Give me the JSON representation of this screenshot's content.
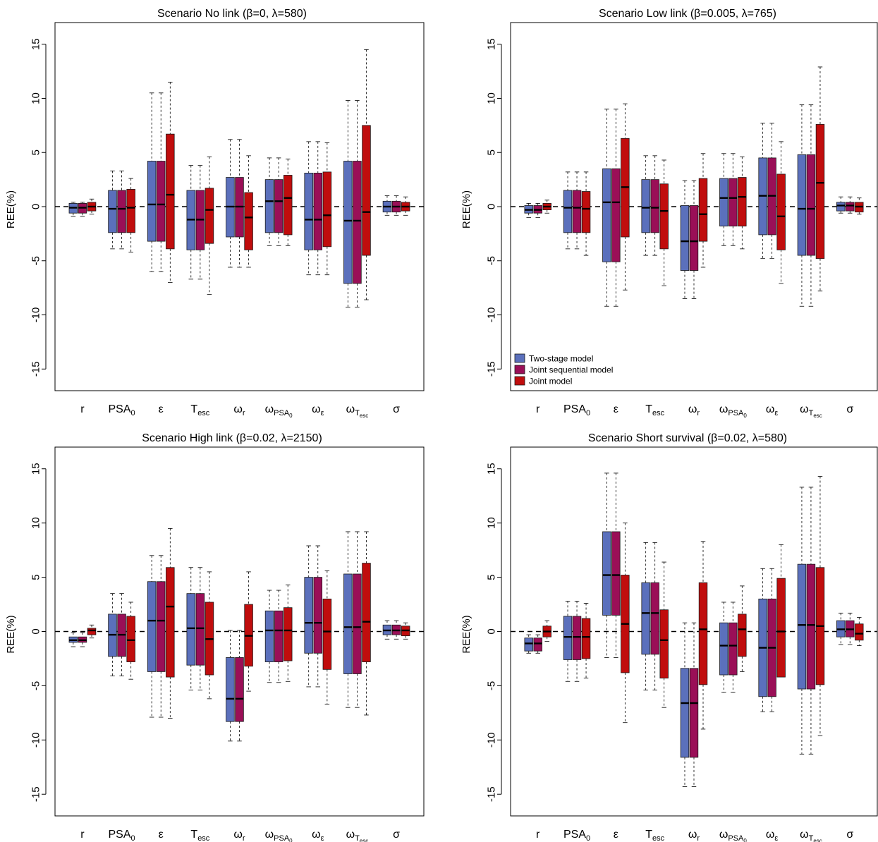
{
  "colors": {
    "two_stage": "#5b70bc",
    "joint_sequential": "#9a0f57",
    "joint": "#c00d0d",
    "box_border": "#1a1a1a",
    "background": "#ffffff"
  },
  "legend": {
    "panel_index": 1,
    "entries": [
      "Two-stage model",
      "Joint sequential model",
      "Joint model"
    ]
  },
  "chart_data": [
    {
      "type": "box",
      "title": "Scenario No link (β=0, λ=580)",
      "ylabel": "REE(%)",
      "ylim": [
        -17,
        17
      ],
      "yticks": [
        -15,
        -10,
        -5,
        0,
        5,
        10,
        15
      ],
      "categories": [
        "r",
        "PSA0",
        "ε",
        "Tesc",
        "ωr",
        "ωPSA0",
        "ωε",
        "ωTesc",
        "σ"
      ],
      "category_labels": [
        {
          "base": "r"
        },
        {
          "base": "PSA",
          "sub": "0"
        },
        {
          "base": "ε"
        },
        {
          "base": "T",
          "sub": "esc"
        },
        {
          "base": "ω",
          "sub": "r"
        },
        {
          "base": "ω",
          "sub": "PSA",
          "subsub": "0"
        },
        {
          "base": "ω",
          "sub": "ε"
        },
        {
          "base": "ω",
          "sub": "T",
          "subsub": "esc"
        },
        {
          "base": "σ"
        }
      ],
      "series": [
        {
          "name": "Two-stage model",
          "boxes": [
            [
              -0.9,
              -0.6,
              -0.1,
              0.3,
              0.4
            ],
            [
              -3.9,
              -2.4,
              -0.2,
              1.5,
              3.3
            ],
            [
              -6.0,
              -3.2,
              0.2,
              4.2,
              10.5
            ],
            [
              -6.7,
              -4.0,
              -1.2,
              1.5,
              3.8
            ],
            [
              -5.6,
              -2.8,
              0.0,
              2.7,
              6.2
            ],
            [
              -3.6,
              -2.4,
              0.5,
              2.5,
              4.5
            ],
            [
              -6.3,
              -4.0,
              -1.2,
              3.1,
              6.0
            ],
            [
              -9.3,
              -7.1,
              -1.3,
              4.2,
              9.8
            ],
            [
              -0.8,
              -0.5,
              0.0,
              0.5,
              1.0
            ]
          ]
        },
        {
          "name": "Joint sequential model",
          "boxes": [
            [
              -0.9,
              -0.6,
              -0.1,
              0.3,
              0.4
            ],
            [
              -3.9,
              -2.4,
              -0.2,
              1.5,
              3.3
            ],
            [
              -6.0,
              -3.2,
              0.2,
              4.2,
              10.5
            ],
            [
              -6.7,
              -4.0,
              -1.2,
              1.5,
              3.8
            ],
            [
              -5.6,
              -2.8,
              0.0,
              2.7,
              6.2
            ],
            [
              -3.6,
              -2.4,
              0.5,
              2.5,
              4.5
            ],
            [
              -6.3,
              -4.0,
              -1.2,
              3.1,
              6.0
            ],
            [
              -9.3,
              -7.1,
              -1.3,
              4.2,
              9.8
            ],
            [
              -0.8,
              -0.5,
              0.0,
              0.5,
              1.0
            ]
          ]
        },
        {
          "name": "Joint model",
          "boxes": [
            [
              -0.7,
              -0.4,
              0.0,
              0.4,
              0.7
            ],
            [
              -4.2,
              -2.4,
              -0.1,
              1.6,
              2.6
            ],
            [
              -7.0,
              -3.9,
              1.1,
              6.7,
              11.5
            ],
            [
              -8.1,
              -3.4,
              -0.3,
              1.7,
              4.6
            ],
            [
              -5.6,
              -4.0,
              -1.0,
              1.3,
              4.7
            ],
            [
              -3.6,
              -2.6,
              0.8,
              2.9,
              4.4
            ],
            [
              -6.3,
              -3.7,
              -0.8,
              3.2,
              5.9
            ],
            [
              -8.6,
              -4.5,
              -0.5,
              7.5,
              14.5
            ],
            [
              -0.8,
              -0.4,
              0.0,
              0.4,
              0.9
            ]
          ]
        }
      ]
    },
    {
      "type": "box",
      "title": "Scenario Low link (β=0.005, λ=765)",
      "ylabel": "REE(%)",
      "ylim": [
        -17,
        17
      ],
      "yticks": [
        -15,
        -10,
        -5,
        0,
        5,
        10,
        15
      ],
      "categories": [
        "r",
        "PSA0",
        "ε",
        "Tesc",
        "ωr",
        "ωPSA0",
        "ωε",
        "ωTesc",
        "σ"
      ],
      "category_labels": [
        {
          "base": "r"
        },
        {
          "base": "PSA",
          "sub": "0"
        },
        {
          "base": "ε"
        },
        {
          "base": "T",
          "sub": "esc"
        },
        {
          "base": "ω",
          "sub": "r"
        },
        {
          "base": "ω",
          "sub": "PSA",
          "subsub": "0"
        },
        {
          "base": "ω",
          "sub": "ε"
        },
        {
          "base": "ω",
          "sub": "T",
          "subsub": "esc"
        },
        {
          "base": "σ"
        }
      ],
      "series": [
        {
          "name": "Two-stage model",
          "boxes": [
            [
              -1.0,
              -0.6,
              -0.3,
              0.1,
              0.3
            ],
            [
              -3.9,
              -2.4,
              -0.1,
              1.5,
              3.2
            ],
            [
              -9.2,
              -5.1,
              0.4,
              3.5,
              9.0
            ],
            [
              -4.5,
              -2.4,
              -0.1,
              2.5,
              4.7
            ],
            [
              -8.5,
              -5.9,
              -3.2,
              0.1,
              2.4
            ],
            [
              -3.6,
              -1.8,
              0.8,
              2.6,
              4.9
            ],
            [
              -4.8,
              -2.6,
              1.0,
              4.5,
              7.7
            ],
            [
              -9.2,
              -4.5,
              -0.2,
              4.8,
              9.4
            ],
            [
              -0.6,
              -0.4,
              0.1,
              0.4,
              0.9
            ]
          ]
        },
        {
          "name": "Joint sequential model",
          "boxes": [
            [
              -1.0,
              -0.6,
              -0.3,
              0.1,
              0.3
            ],
            [
              -3.9,
              -2.4,
              -0.1,
              1.5,
              3.2
            ],
            [
              -9.2,
              -5.1,
              0.4,
              3.5,
              9.0
            ],
            [
              -4.5,
              -2.4,
              -0.1,
              2.5,
              4.7
            ],
            [
              -8.5,
              -5.9,
              -3.2,
              0.1,
              2.4
            ],
            [
              -3.6,
              -1.8,
              0.8,
              2.6,
              4.9
            ],
            [
              -4.8,
              -2.6,
              1.0,
              4.5,
              7.7
            ],
            [
              -9.2,
              -4.5,
              -0.2,
              4.8,
              9.4
            ],
            [
              -0.6,
              -0.4,
              0.1,
              0.4,
              0.9
            ]
          ]
        },
        {
          "name": "Joint model",
          "boxes": [
            [
              -0.6,
              -0.3,
              0.0,
              0.3,
              0.6
            ],
            [
              -4.5,
              -2.4,
              -0.2,
              1.4,
              3.2
            ],
            [
              -7.7,
              -2.8,
              1.8,
              6.3,
              9.5
            ],
            [
              -7.3,
              -3.9,
              -0.4,
              2.1,
              4.3
            ],
            [
              -5.6,
              -3.2,
              -0.7,
              2.6,
              4.9
            ],
            [
              -3.9,
              -1.8,
              0.9,
              2.7,
              4.6
            ],
            [
              -7.1,
              -4.0,
              -0.9,
              3.0,
              6.0
            ],
            [
              -7.8,
              -4.8,
              2.2,
              7.6,
              12.9
            ],
            [
              -0.7,
              -0.5,
              0.0,
              0.4,
              0.8
            ]
          ]
        }
      ]
    },
    {
      "type": "box",
      "title": "Scenario High link (β=0.02, λ=2150)",
      "ylabel": "REE(%)",
      "ylim": [
        -17,
        17
      ],
      "yticks": [
        -15,
        -10,
        -5,
        0,
        5,
        10,
        15
      ],
      "categories": [
        "r",
        "PSA0",
        "ε",
        "Tesc",
        "ωr",
        "ωPSA0",
        "ωε",
        "ωTesc",
        "σ"
      ],
      "category_labels": [
        {
          "base": "r"
        },
        {
          "base": "PSA",
          "sub": "0"
        },
        {
          "base": "ε"
        },
        {
          "base": "T",
          "sub": "esc"
        },
        {
          "base": "ω",
          "sub": "r"
        },
        {
          "base": "ω",
          "sub": "PSA",
          "subsub": "0"
        },
        {
          "base": "ω",
          "sub": "ε"
        },
        {
          "base": "ω",
          "sub": "T",
          "subsub": "esc"
        },
        {
          "base": "σ"
        }
      ],
      "series": [
        {
          "name": "Two-stage model",
          "boxes": [
            [
              -1.4,
              -1.0,
              -0.8,
              -0.5,
              -0.1
            ],
            [
              -4.1,
              -2.3,
              -0.3,
              1.6,
              3.5
            ],
            [
              -7.9,
              -3.7,
              1.0,
              4.6,
              7.0
            ],
            [
              -5.4,
              -3.1,
              0.3,
              3.5,
              5.9
            ],
            [
              -10.1,
              -8.3,
              -6.2,
              -2.4,
              0.1
            ],
            [
              -4.7,
              -2.8,
              0.1,
              1.9,
              3.8
            ],
            [
              -5.1,
              -2.0,
              0.8,
              5.0,
              7.9
            ],
            [
              -7.0,
              -3.9,
              0.4,
              5.3,
              9.2
            ],
            [
              -0.7,
              -0.3,
              0.1,
              0.6,
              1.0
            ]
          ]
        },
        {
          "name": "Joint sequential model",
          "boxes": [
            [
              -1.4,
              -1.0,
              -0.8,
              -0.5,
              -0.1
            ],
            [
              -4.1,
              -2.3,
              -0.3,
              1.6,
              3.5
            ],
            [
              -7.9,
              -3.7,
              1.0,
              4.6,
              7.0
            ],
            [
              -5.4,
              -3.1,
              0.3,
              3.5,
              5.9
            ],
            [
              -10.1,
              -8.3,
              -6.2,
              -2.4,
              0.1
            ],
            [
              -4.7,
              -2.8,
              0.1,
              1.9,
              3.8
            ],
            [
              -5.1,
              -2.0,
              0.8,
              5.0,
              7.9
            ],
            [
              -7.0,
              -3.9,
              0.4,
              5.3,
              9.2
            ],
            [
              -0.7,
              -0.3,
              0.1,
              0.6,
              1.0
            ]
          ]
        },
        {
          "name": "Joint model",
          "boxes": [
            [
              -0.6,
              -0.3,
              0.1,
              0.3,
              0.6
            ],
            [
              -4.4,
              -2.8,
              -0.8,
              1.4,
              2.7
            ],
            [
              -8.0,
              -4.2,
              2.3,
              5.9,
              9.5
            ],
            [
              -6.2,
              -4.0,
              -0.7,
              2.7,
              5.5
            ],
            [
              -5.5,
              -3.2,
              -0.4,
              2.5,
              5.5
            ],
            [
              -4.6,
              -2.7,
              0.1,
              2.2,
              4.3
            ],
            [
              -6.7,
              -3.5,
              0.0,
              3.0,
              5.6
            ],
            [
              -7.7,
              -2.8,
              0.9,
              6.3,
              9.2
            ],
            [
              -0.7,
              -0.4,
              0.1,
              0.5,
              0.8
            ]
          ]
        }
      ]
    },
    {
      "type": "box",
      "title": "Scenario Short survival (β=0.02, λ=580)",
      "ylabel": "REE(%)",
      "ylim": [
        -17,
        17
      ],
      "yticks": [
        -15,
        -10,
        -5,
        0,
        5,
        10,
        15
      ],
      "categories": [
        "r",
        "PSA0",
        "ε",
        "Tesc",
        "ωr",
        "ωPSA0",
        "ωε",
        "ωTesc",
        "σ"
      ],
      "category_labels": [
        {
          "base": "r"
        },
        {
          "base": "PSA",
          "sub": "0"
        },
        {
          "base": "ε"
        },
        {
          "base": "T",
          "sub": "esc"
        },
        {
          "base": "ω",
          "sub": "r"
        },
        {
          "base": "ω",
          "sub": "PSA",
          "subsub": "0"
        },
        {
          "base": "ω",
          "sub": "ε"
        },
        {
          "base": "ω",
          "sub": "T",
          "subsub": "esc"
        },
        {
          "base": "σ"
        }
      ],
      "series": [
        {
          "name": "Two-stage model",
          "boxes": [
            [
              -2.0,
              -1.8,
              -1.1,
              -0.6,
              -0.3
            ],
            [
              -4.6,
              -2.6,
              -0.5,
              1.4,
              2.8
            ],
            [
              -2.4,
              1.5,
              5.2,
              9.2,
              14.6
            ],
            [
              -5.4,
              -2.1,
              1.7,
              4.5,
              8.2
            ],
            [
              -14.3,
              -11.6,
              -6.6,
              -3.4,
              0.8
            ],
            [
              -5.6,
              -4.0,
              -1.3,
              0.8,
              2.7
            ],
            [
              -7.4,
              -6.0,
              -1.5,
              3.0,
              5.8
            ],
            [
              -11.3,
              -5.3,
              0.6,
              6.2,
              13.3
            ],
            [
              -1.2,
              -0.5,
              0.2,
              1.0,
              1.7
            ]
          ]
        },
        {
          "name": "Joint sequential model",
          "boxes": [
            [
              -2.0,
              -1.8,
              -1.1,
              -0.6,
              -0.3
            ],
            [
              -4.6,
              -2.6,
              -0.5,
              1.4,
              2.8
            ],
            [
              -2.4,
              1.5,
              5.2,
              9.2,
              14.6
            ],
            [
              -5.4,
              -2.1,
              1.7,
              4.5,
              8.2
            ],
            [
              -14.3,
              -11.6,
              -6.6,
              -3.4,
              0.8
            ],
            [
              -5.6,
              -4.0,
              -1.3,
              0.8,
              2.7
            ],
            [
              -7.4,
              -6.0,
              -1.5,
              3.0,
              5.8
            ],
            [
              -11.3,
              -5.3,
              0.6,
              6.2,
              13.3
            ],
            [
              -1.2,
              -0.5,
              0.2,
              1.0,
              1.7
            ]
          ]
        },
        {
          "name": "Joint model",
          "boxes": [
            [
              -0.9,
              -0.5,
              0.0,
              0.5,
              1.0
            ],
            [
              -4.3,
              -2.5,
              -0.5,
              1.2,
              2.6
            ],
            [
              -8.4,
              -3.8,
              0.7,
              5.2,
              10.0
            ],
            [
              -7.0,
              -4.3,
              -0.8,
              2.0,
              6.4
            ],
            [
              -9.0,
              -4.9,
              0.2,
              4.5,
              8.3
            ],
            [
              -3.7,
              -2.3,
              0.2,
              1.6,
              4.2
            ],
            [
              -4.2,
              -4.2,
              0.0,
              4.9,
              8.0
            ],
            [
              -9.6,
              -4.9,
              0.5,
              5.9,
              14.3
            ],
            [
              -1.3,
              -0.8,
              -0.2,
              0.7,
              1.3
            ]
          ]
        }
      ]
    }
  ]
}
